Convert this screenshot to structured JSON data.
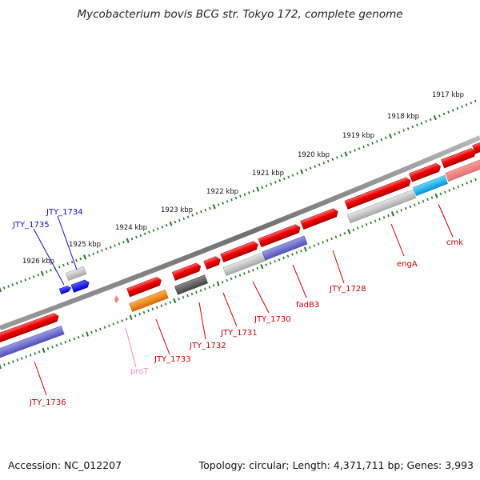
{
  "title": "Mycobacterium bovis BCG str. Tokyo 172, complete genome",
  "footer": {
    "accession": "Accession: NC_012207",
    "summary": "Topology: circular; Length: 4,371,711 bp; Genes: 3,993"
  },
  "scale_labels": [
    {
      "text": "1917 kbp"
    },
    {
      "text": "1918 kbp"
    },
    {
      "text": "1919 kbp"
    },
    {
      "text": "1920 kbp"
    },
    {
      "text": "1921 kbp"
    },
    {
      "text": "1922 kbp"
    },
    {
      "text": "1923 kbp"
    },
    {
      "text": "1924 kbp"
    },
    {
      "text": "1925 kbp"
    },
    {
      "text": "1926 kbp"
    }
  ],
  "gene_labels": [
    {
      "text": "JTY_1734",
      "color": "#1010cc"
    },
    {
      "text": "JTY_1735",
      "color": "#1010cc"
    },
    {
      "text": "JTY_1736",
      "color": "#cc0000"
    },
    {
      "text": "proT",
      "color": "#f090c0"
    },
    {
      "text": "JTY_1733",
      "color": "#cc0000"
    },
    {
      "text": "JTY_1732",
      "color": "#cc0000"
    },
    {
      "text": "JTY_1731",
      "color": "#cc0000"
    },
    {
      "text": "JTY_1730",
      "color": "#cc0000"
    },
    {
      "text": "fadB3",
      "color": "#cc0000"
    },
    {
      "text": "JTY_1728",
      "color": "#cc0000"
    },
    {
      "text": "engA",
      "color": "#cc0000"
    },
    {
      "text": "cmk",
      "color": "#cc0000"
    }
  ],
  "colors": {
    "backbone": "#808080",
    "tick": "#1a7a1a",
    "cds_forward": "#ee0000",
    "rna": "#f090c0",
    "gene_product_grey": "#b8b8b8",
    "gene_dark_grey": "#555555",
    "gene_purple": "#6666cc",
    "gene_orange": "#f08000",
    "gene_cyan": "#00aaee",
    "gene_blue": "#0000ee"
  }
}
